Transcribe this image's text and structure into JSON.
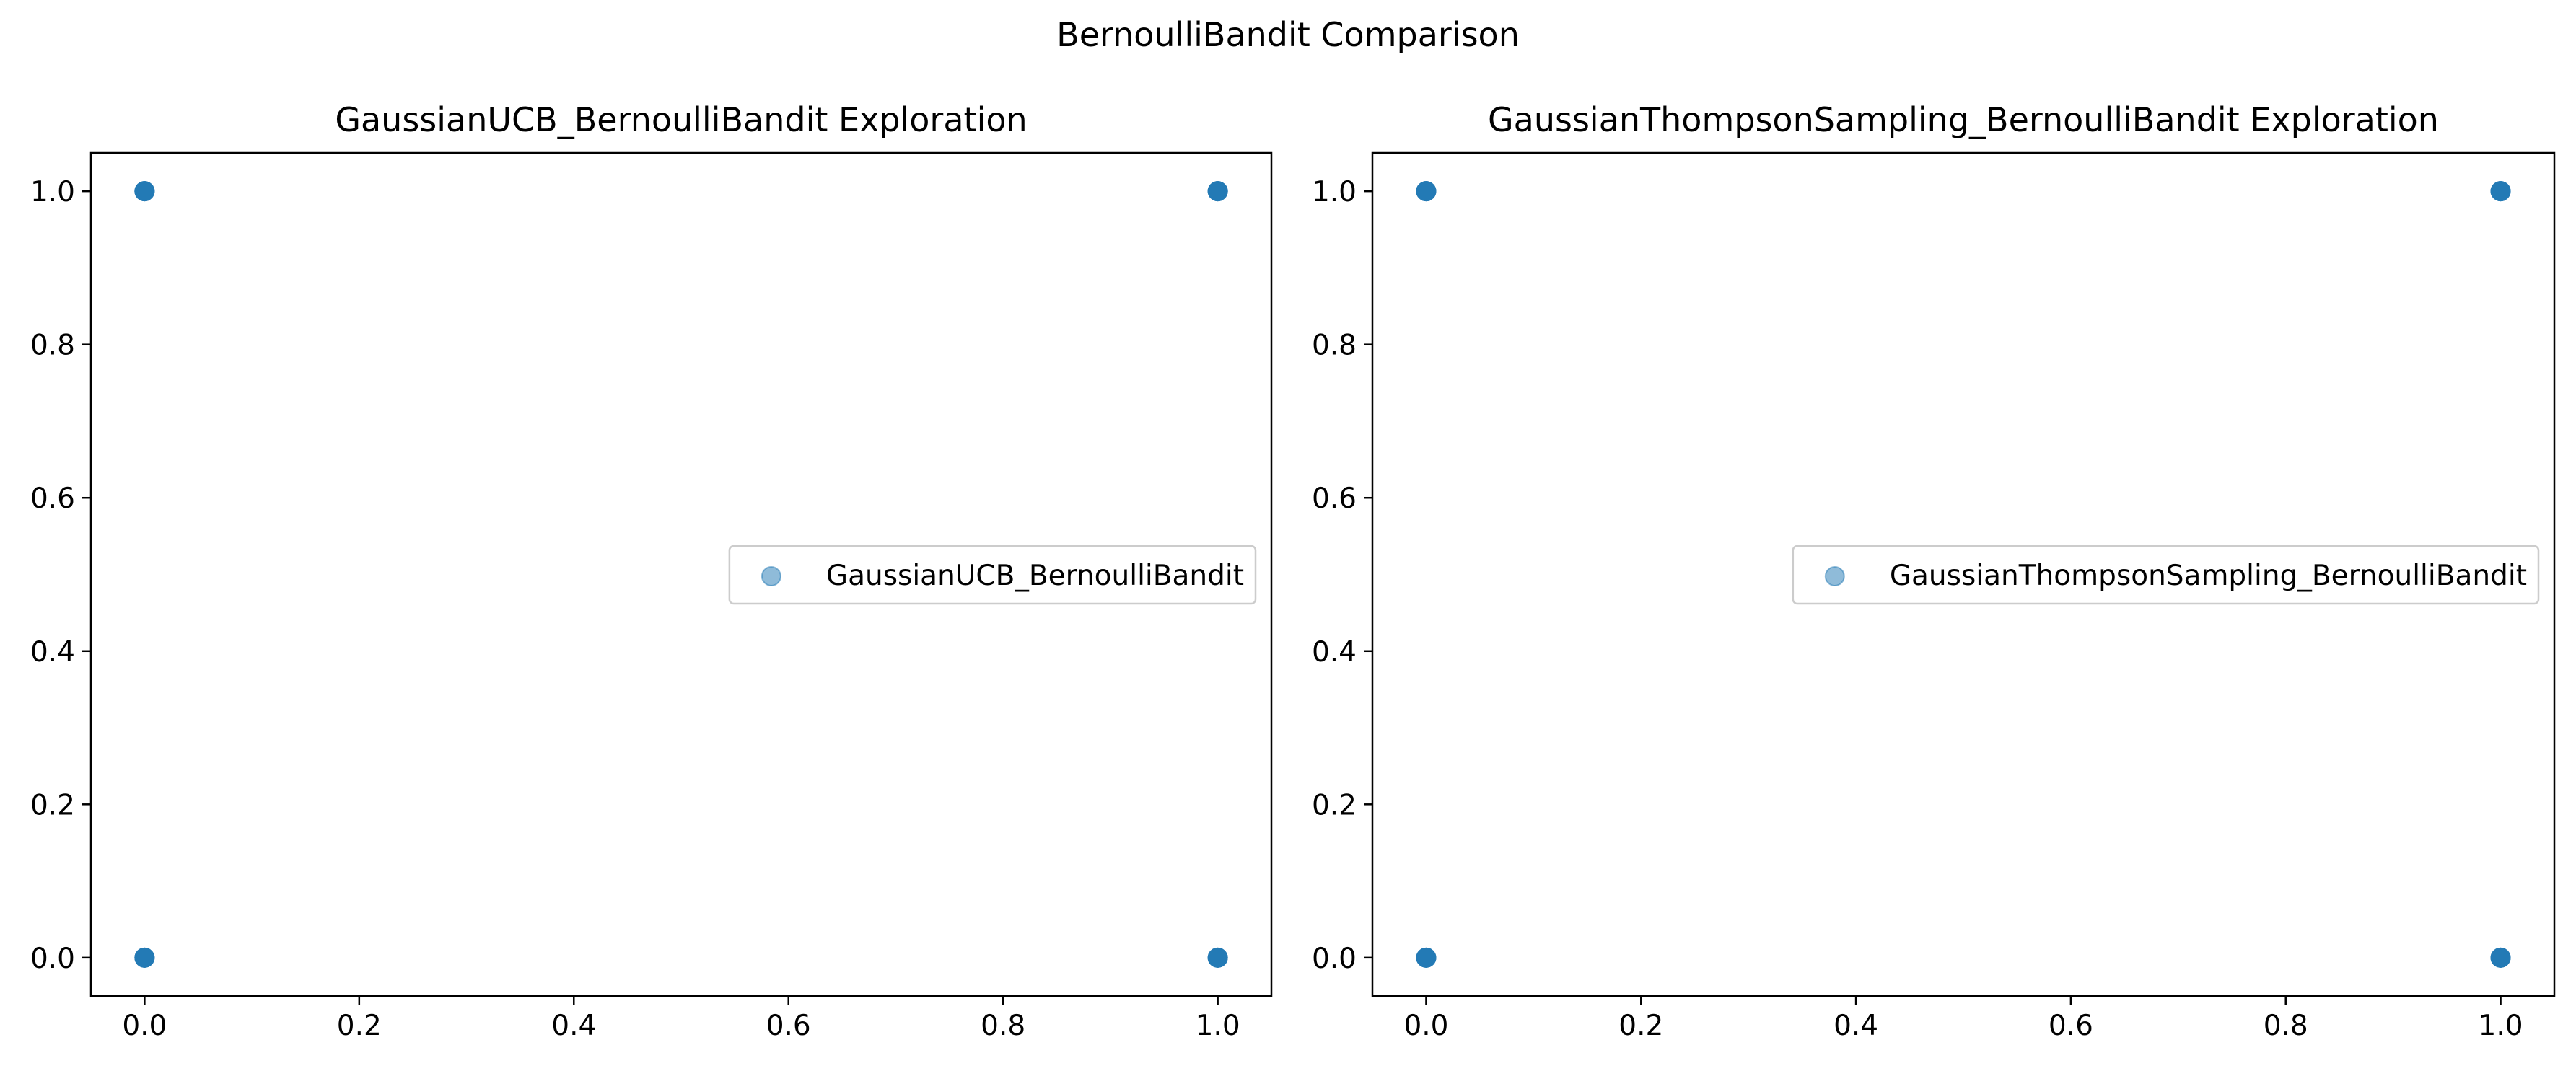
{
  "figure": {
    "suptitle": "BernoulliBandit Comparison"
  },
  "chart_data": [
    {
      "type": "scatter",
      "title": "GaussianUCB_BernoulliBandit Exploration",
      "xlabel": "",
      "ylabel": "",
      "xlim": [
        -0.05,
        1.05
      ],
      "ylim": [
        -0.05,
        1.05
      ],
      "xticks": [
        "0.0",
        "0.2",
        "0.4",
        "0.6",
        "0.8",
        "1.0"
      ],
      "yticks": [
        "0.0",
        "0.2",
        "0.4",
        "0.6",
        "0.8",
        "1.0"
      ],
      "grid": false,
      "legend_position": "center-right",
      "series": [
        {
          "name": "GaussianUCB_BernoulliBandit",
          "color": "#1f77b4",
          "alpha": 0.5,
          "points": [
            {
              "x": 0,
              "y": 0
            },
            {
              "x": 0,
              "y": 1
            },
            {
              "x": 1,
              "y": 0
            },
            {
              "x": 1,
              "y": 1
            }
          ]
        }
      ]
    },
    {
      "type": "scatter",
      "title": "GaussianThompsonSampling_BernoulliBandit Exploration",
      "xlabel": "",
      "ylabel": "",
      "xlim": [
        -0.05,
        1.05
      ],
      "ylim": [
        -0.05,
        1.05
      ],
      "xticks": [
        "0.0",
        "0.2",
        "0.4",
        "0.6",
        "0.8",
        "1.0"
      ],
      "yticks": [
        "0.0",
        "0.2",
        "0.4",
        "0.6",
        "0.8",
        "1.0"
      ],
      "grid": false,
      "legend_position": "center-right",
      "series": [
        {
          "name": "GaussianThompsonSampling_BernoulliBandit",
          "color": "#1f77b4",
          "alpha": 0.5,
          "points": [
            {
              "x": 0,
              "y": 0
            },
            {
              "x": 0,
              "y": 1
            },
            {
              "x": 1,
              "y": 0
            },
            {
              "x": 1,
              "y": 1
            }
          ]
        }
      ]
    }
  ]
}
